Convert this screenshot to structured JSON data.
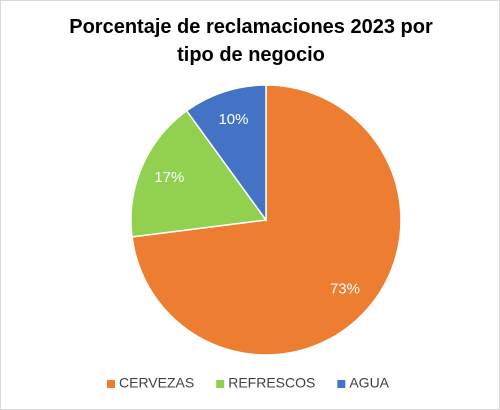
{
  "chart_data": {
    "type": "pie",
    "title": "Porcentaje de reclamaciones 2023 por tipo de negocio",
    "categories": [
      "CERVEZAS",
      "REFRESCOS",
      "AGUA"
    ],
    "values": [
      73,
      17,
      10
    ],
    "value_labels": [
      "73%",
      "17%",
      "10%"
    ],
    "colors": [
      "#ED7D31",
      "#92D050",
      "#4472C4"
    ],
    "legend": "bottom"
  }
}
